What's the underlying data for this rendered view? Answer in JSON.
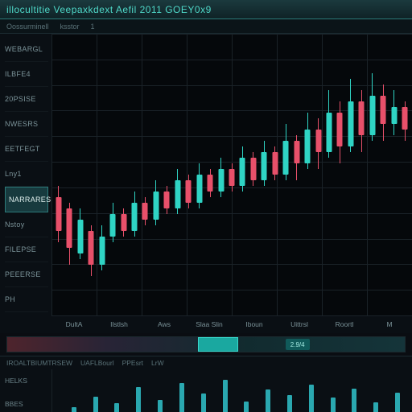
{
  "colors": {
    "background": "#0a0d12",
    "plot_bg": "#05080b",
    "grid": "#1a2228",
    "up_candle": "#2fd4c4",
    "down_candle": "#e8506a",
    "volume_bar": "#2aa8b0",
    "title_text": "#4fd8c8",
    "label_text": "#7b9399",
    "accent_bg": "#173a3e"
  },
  "titlebar": {
    "title": "illocultitie Veepaxkdext  Aefil  2011  GOEY0x9"
  },
  "sub_toolbar": {
    "items": [
      "Oossurminell",
      "ksstor",
      "1"
    ]
  },
  "candlestick_chart": {
    "type": "candlestick",
    "ylim": [
      0,
      100
    ],
    "y_labels": [
      {
        "text": "WEBARGL"
      },
      {
        "text": "ILBFE4"
      },
      {
        "text": "20PSISE"
      },
      {
        "text": "NWESRS"
      },
      {
        "text": "EETFEGT"
      },
      {
        "text": "Lny1"
      },
      {
        "text": "NARRARES",
        "style": "accent"
      },
      {
        "text": "Nstoy"
      },
      {
        "text": "FILEPSE"
      },
      {
        "text": "PEEERSE"
      },
      {
        "text": "PH"
      }
    ],
    "x_labels": [
      "DultA",
      "Ilstlsh",
      "Aws",
      "Slaa Slin",
      "Iboun",
      "Uittrsl",
      "Roortl",
      "M"
    ],
    "grid": {
      "h_lines": 11,
      "v_lines": 8
    },
    "candles": [
      {
        "x": 2,
        "o": 42,
        "c": 30,
        "h": 46,
        "l": 26,
        "dir": "down"
      },
      {
        "x": 5,
        "o": 38,
        "c": 24,
        "h": 40,
        "l": 18,
        "dir": "down"
      },
      {
        "x": 8,
        "o": 22,
        "c": 34,
        "h": 38,
        "l": 20,
        "dir": "up"
      },
      {
        "x": 11,
        "o": 30,
        "c": 18,
        "h": 32,
        "l": 14,
        "dir": "down"
      },
      {
        "x": 14,
        "o": 18,
        "c": 28,
        "h": 32,
        "l": 16,
        "dir": "up"
      },
      {
        "x": 17,
        "o": 28,
        "c": 36,
        "h": 40,
        "l": 26,
        "dir": "up"
      },
      {
        "x": 20,
        "o": 36,
        "c": 30,
        "h": 38,
        "l": 28,
        "dir": "down"
      },
      {
        "x": 23,
        "o": 30,
        "c": 40,
        "h": 44,
        "l": 28,
        "dir": "up"
      },
      {
        "x": 26,
        "o": 40,
        "c": 34,
        "h": 42,
        "l": 32,
        "dir": "down"
      },
      {
        "x": 29,
        "o": 34,
        "c": 44,
        "h": 48,
        "l": 32,
        "dir": "up"
      },
      {
        "x": 32,
        "o": 44,
        "c": 38,
        "h": 46,
        "l": 36,
        "dir": "down"
      },
      {
        "x": 35,
        "o": 38,
        "c": 48,
        "h": 52,
        "l": 36,
        "dir": "up"
      },
      {
        "x": 38,
        "o": 48,
        "c": 40,
        "h": 50,
        "l": 38,
        "dir": "down"
      },
      {
        "x": 41,
        "o": 40,
        "c": 50,
        "h": 54,
        "l": 38,
        "dir": "up"
      },
      {
        "x": 44,
        "o": 50,
        "c": 44,
        "h": 52,
        "l": 42,
        "dir": "down"
      },
      {
        "x": 47,
        "o": 44,
        "c": 52,
        "h": 56,
        "l": 42,
        "dir": "up"
      },
      {
        "x": 50,
        "o": 52,
        "c": 46,
        "h": 54,
        "l": 44,
        "dir": "down"
      },
      {
        "x": 53,
        "o": 46,
        "c": 56,
        "h": 60,
        "l": 44,
        "dir": "up"
      },
      {
        "x": 56,
        "o": 56,
        "c": 48,
        "h": 58,
        "l": 46,
        "dir": "down"
      },
      {
        "x": 59,
        "o": 48,
        "c": 58,
        "h": 62,
        "l": 46,
        "dir": "up"
      },
      {
        "x": 62,
        "o": 58,
        "c": 50,
        "h": 60,
        "l": 48,
        "dir": "down"
      },
      {
        "x": 65,
        "o": 50,
        "c": 62,
        "h": 68,
        "l": 48,
        "dir": "up"
      },
      {
        "x": 68,
        "o": 62,
        "c": 54,
        "h": 64,
        "l": 48,
        "dir": "down"
      },
      {
        "x": 71,
        "o": 54,
        "c": 66,
        "h": 72,
        "l": 52,
        "dir": "up"
      },
      {
        "x": 74,
        "o": 66,
        "c": 58,
        "h": 70,
        "l": 52,
        "dir": "down"
      },
      {
        "x": 77,
        "o": 58,
        "c": 72,
        "h": 80,
        "l": 56,
        "dir": "up"
      },
      {
        "x": 80,
        "o": 72,
        "c": 60,
        "h": 76,
        "l": 54,
        "dir": "down"
      },
      {
        "x": 83,
        "o": 60,
        "c": 76,
        "h": 84,
        "l": 58,
        "dir": "up"
      },
      {
        "x": 86,
        "o": 76,
        "c": 64,
        "h": 80,
        "l": 58,
        "dir": "down"
      },
      {
        "x": 89,
        "o": 64,
        "c": 78,
        "h": 86,
        "l": 62,
        "dir": "up"
      },
      {
        "x": 92,
        "o": 78,
        "c": 68,
        "h": 82,
        "l": 62,
        "dir": "down"
      },
      {
        "x": 95,
        "o": 68,
        "c": 74,
        "h": 80,
        "l": 64,
        "dir": "up"
      },
      {
        "x": 98,
        "o": 74,
        "c": 66,
        "h": 76,
        "l": 62,
        "dir": "down"
      }
    ]
  },
  "range_strip": {
    "thumb": {
      "left_pct": 48,
      "width_pct": 10
    },
    "chip": {
      "left_pct": 70,
      "label": "2.9/4"
    }
  },
  "volume_panel": {
    "header_items": [
      "IROALTBIUMTRSEW",
      "UAFLBourl",
      "PPEsrt",
      "LrW"
    ],
    "y_labels": [
      "HELKS",
      "BBES"
    ],
    "bars": [
      {
        "x": 6,
        "h": 18
      },
      {
        "x": 12,
        "h": 40
      },
      {
        "x": 18,
        "h": 26
      },
      {
        "x": 24,
        "h": 62
      },
      {
        "x": 30,
        "h": 34
      },
      {
        "x": 36,
        "h": 70
      },
      {
        "x": 42,
        "h": 48
      },
      {
        "x": 48,
        "h": 78
      },
      {
        "x": 54,
        "h": 30
      },
      {
        "x": 60,
        "h": 56
      },
      {
        "x": 66,
        "h": 44
      },
      {
        "x": 72,
        "h": 66
      },
      {
        "x": 78,
        "h": 38
      },
      {
        "x": 84,
        "h": 58
      },
      {
        "x": 90,
        "h": 28
      },
      {
        "x": 96,
        "h": 50
      }
    ]
  }
}
